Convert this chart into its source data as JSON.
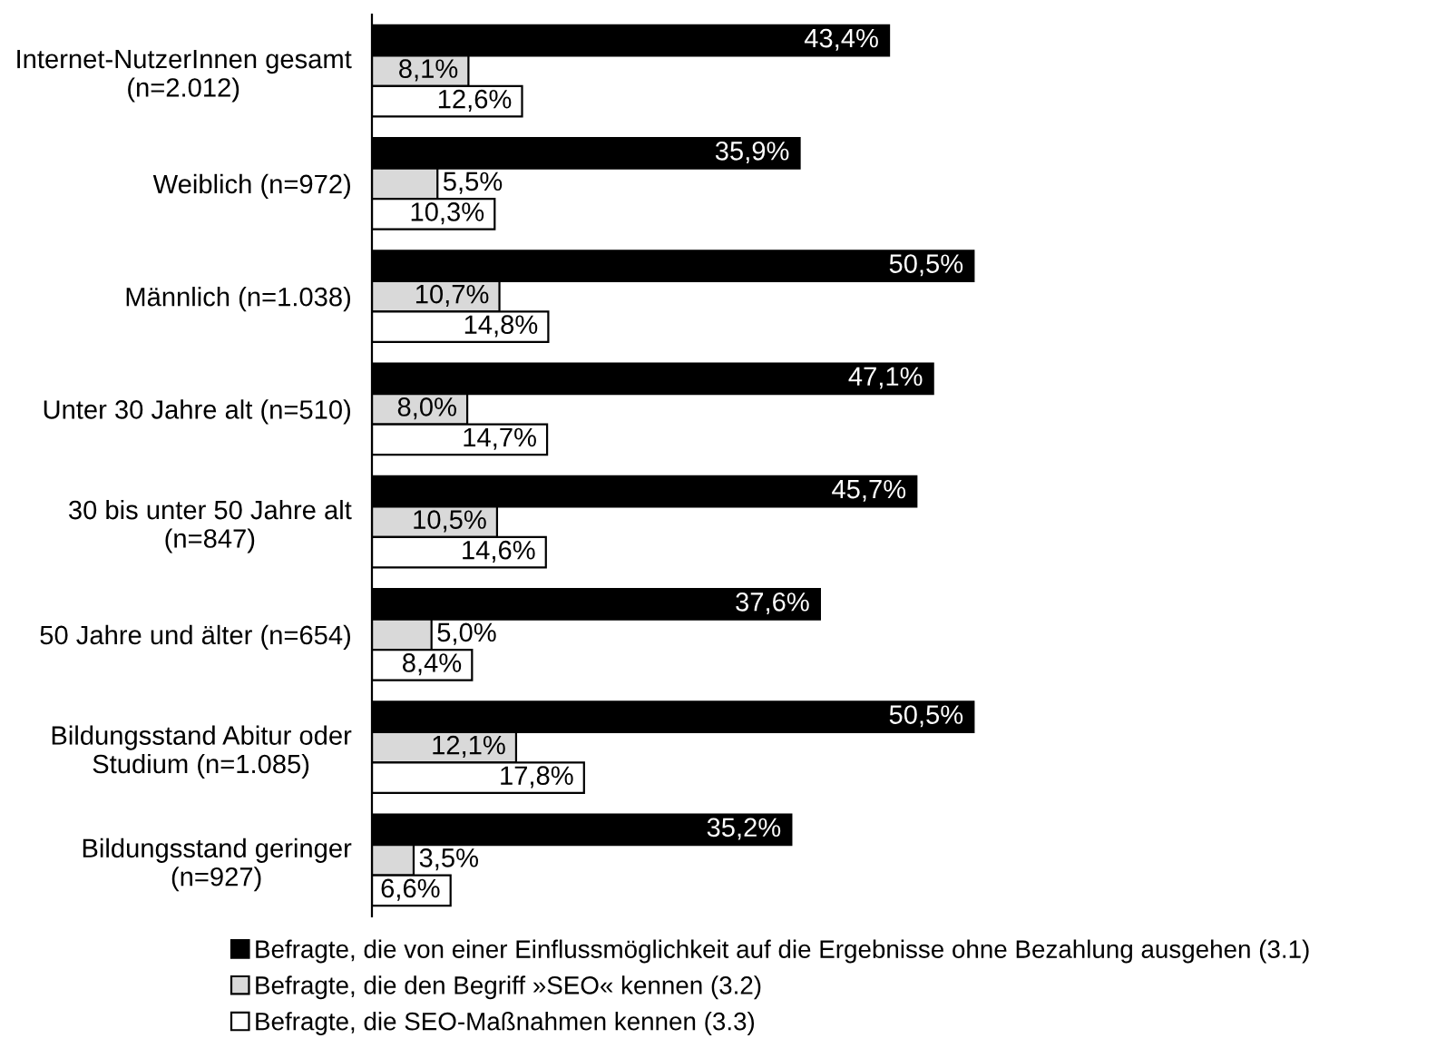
{
  "chart_data": {
    "type": "bar",
    "orientation": "horizontal",
    "legend": "bottom",
    "categories": [
      "Internet-NutzerInnen gesamt\n(n=2.012)",
      "Weiblich (n=972)",
      "Männlich (n=1.038)",
      "Unter 30 Jahre alt (n=510)",
      "30 bis unter 50 Jahre alt\n(n=847)",
      "50 Jahre und älter (n=654)",
      "Bildungsstand Abitur oder\nStudium (n=1.085)",
      "Bildungsstand geringer\n(n=927)"
    ],
    "series": [
      {
        "name": "Befragte, die von einer Einflussmöglichkeit auf die Ergebnisse ohne Bezahlung ausgehen (3.1)",
        "color": "#000000",
        "values": [
          43.4,
          35.9,
          50.5,
          47.1,
          45.7,
          37.6,
          50.5,
          35.2
        ],
        "value_labels": [
          "43,4%",
          "35,9%",
          "50,5%",
          "47,1%",
          "45,7%",
          "37,6%",
          "50,5%",
          "35,2%"
        ]
      },
      {
        "name": "Befragte, die den Begriff »SEO« kennen (3.2)",
        "color": "#d9d9d9",
        "values": [
          8.1,
          5.5,
          10.7,
          8.0,
          10.5,
          5.0,
          12.1,
          3.5
        ],
        "value_labels": [
          "8,1%",
          "5,5%",
          "10,7%",
          "8,0%",
          "10,5%",
          "5,0%",
          "12,1%",
          "3,5%"
        ]
      },
      {
        "name": "Befragte, die SEO-Maßnahmen kennen (3.3)",
        "color": "#ffffff",
        "values": [
          12.6,
          10.3,
          14.8,
          14.7,
          14.6,
          8.4,
          17.8,
          6.6
        ],
        "value_labels": [
          "12,6%",
          "10,3%",
          "14,8%",
          "14,7%",
          "14,6%",
          "8,4%",
          "17,8%",
          "6,6%"
        ]
      }
    ]
  }
}
